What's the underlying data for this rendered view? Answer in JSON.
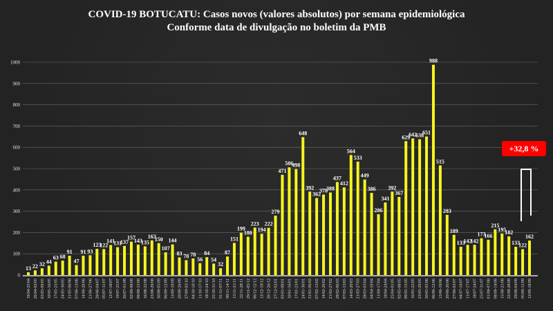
{
  "title": {
    "line1": "COVID-19 BOTUCATU: Casos novos (valores absolutos) por semana epidemiológica",
    "line2": "Conforme data de divulgação no boletim da PMB"
  },
  "badge": {
    "text": "+32,8 %",
    "color": "#ff0000"
  },
  "colors": {
    "bar": "#f5f51e",
    "grid": "#8a8a8a",
    "axis": "#ffffff",
    "bracket": "#ffffff"
  },
  "chart_data": {
    "type": "bar",
    "title": "COVID-19 BOTUCATU: Casos novos (valores absolutos) por semana epidemiológica",
    "subtitle": "Conforme data de divulgação no boletim da PMB",
    "xlabel": "",
    "ylabel": "",
    "ylim": [
      0,
      1000
    ],
    "yticks": [
      0,
      100,
      200,
      300,
      400,
      500,
      600,
      700,
      800,
      900,
      1000
    ],
    "grid": true,
    "legend": "none",
    "categories": [
      "19/04-25/04",
      "26/04-02/05",
      "03/05-09/05",
      "10/05-16/05",
      "17/05-23/05",
      "24/05-30/05",
      "31/05-06/06",
      "07/06-13/06",
      "14/06-20/06",
      "21/06-27/06",
      "28/06-04/07",
      "05/07-11/07",
      "12/07-18/07",
      "19/07-25/07",
      "26/07-01/08",
      "02/08-08/08",
      "09/08-15/08",
      "16/08-22/08",
      "23/08-29/08",
      "30/08-05/09",
      "06/09-12/09",
      "13/09-19/09",
      "20/09-26/09",
      "27/09-03/10",
      "04/10-10/10",
      "11/10-17/10",
      "18/10-24/10",
      "25/10-31/10",
      "01/11-07/11",
      "08/11-14/11",
      "15/11-21/11",
      "22/11-28/11",
      "29/11-05/12",
      "06/12-12/12",
      "13/12-19/12",
      "20/12-26/12",
      "27/12-02/01",
      "03/01-09/01",
      "10/01-16/01",
      "17/01-23/01",
      "24/01-30/01",
      "31/01-06/02",
      "07/02-13/02",
      "14/02-20/02",
      "21/02-27/02",
      "28/02-06/03",
      "07/03-13/03",
      "14/03-20/03",
      "21/03-27/03",
      "28/03-03/04",
      "04/04-10/04",
      "11/04-17/04",
      "18/04-24/04",
      "25/04-01/05",
      "02/05-08/05",
      "09/05-15/05",
      "16/05-22/05",
      "23/05-29/05",
      "30/05-05/06",
      "06/06-12/06",
      "13/06-19/06",
      "20/06-26/06",
      "27/06-03/07",
      "04/07-10/07",
      "11/07-17/07",
      "18/07-24/07",
      "25/07-31/07",
      "01/08-07/08",
      "08/08-14/08",
      "15/08-21/08",
      "22/08-28/08",
      "29/08-04/09",
      "05/09-11/09",
      "12/09-18/09"
    ],
    "values": [
      13,
      22,
      32,
      44,
      63,
      68,
      91,
      47,
      91,
      93,
      123,
      122,
      141,
      131,
      137,
      157,
      143,
      135,
      163,
      150,
      107,
      144,
      83,
      70,
      78,
      56,
      84,
      54,
      32,
      87,
      151,
      199,
      180,
      223,
      194,
      222,
      279,
      471,
      506,
      498,
      648,
      392,
      362,
      378,
      388,
      437,
      412,
      564,
      533,
      449,
      386,
      286,
      341,
      392,
      367,
      629,
      642,
      638,
      651,
      988,
      515,
      283,
      189,
      133,
      142,
      142,
      173,
      166,
      215,
      195,
      182,
      133,
      122,
      162
    ],
    "annotations": [
      {
        "text": "+32,8 %",
        "type": "badge",
        "position": "right"
      },
      {
        "type": "bracket",
        "from_value": 122,
        "to_value": 162,
        "description": "increase between last two weeks"
      }
    ]
  }
}
